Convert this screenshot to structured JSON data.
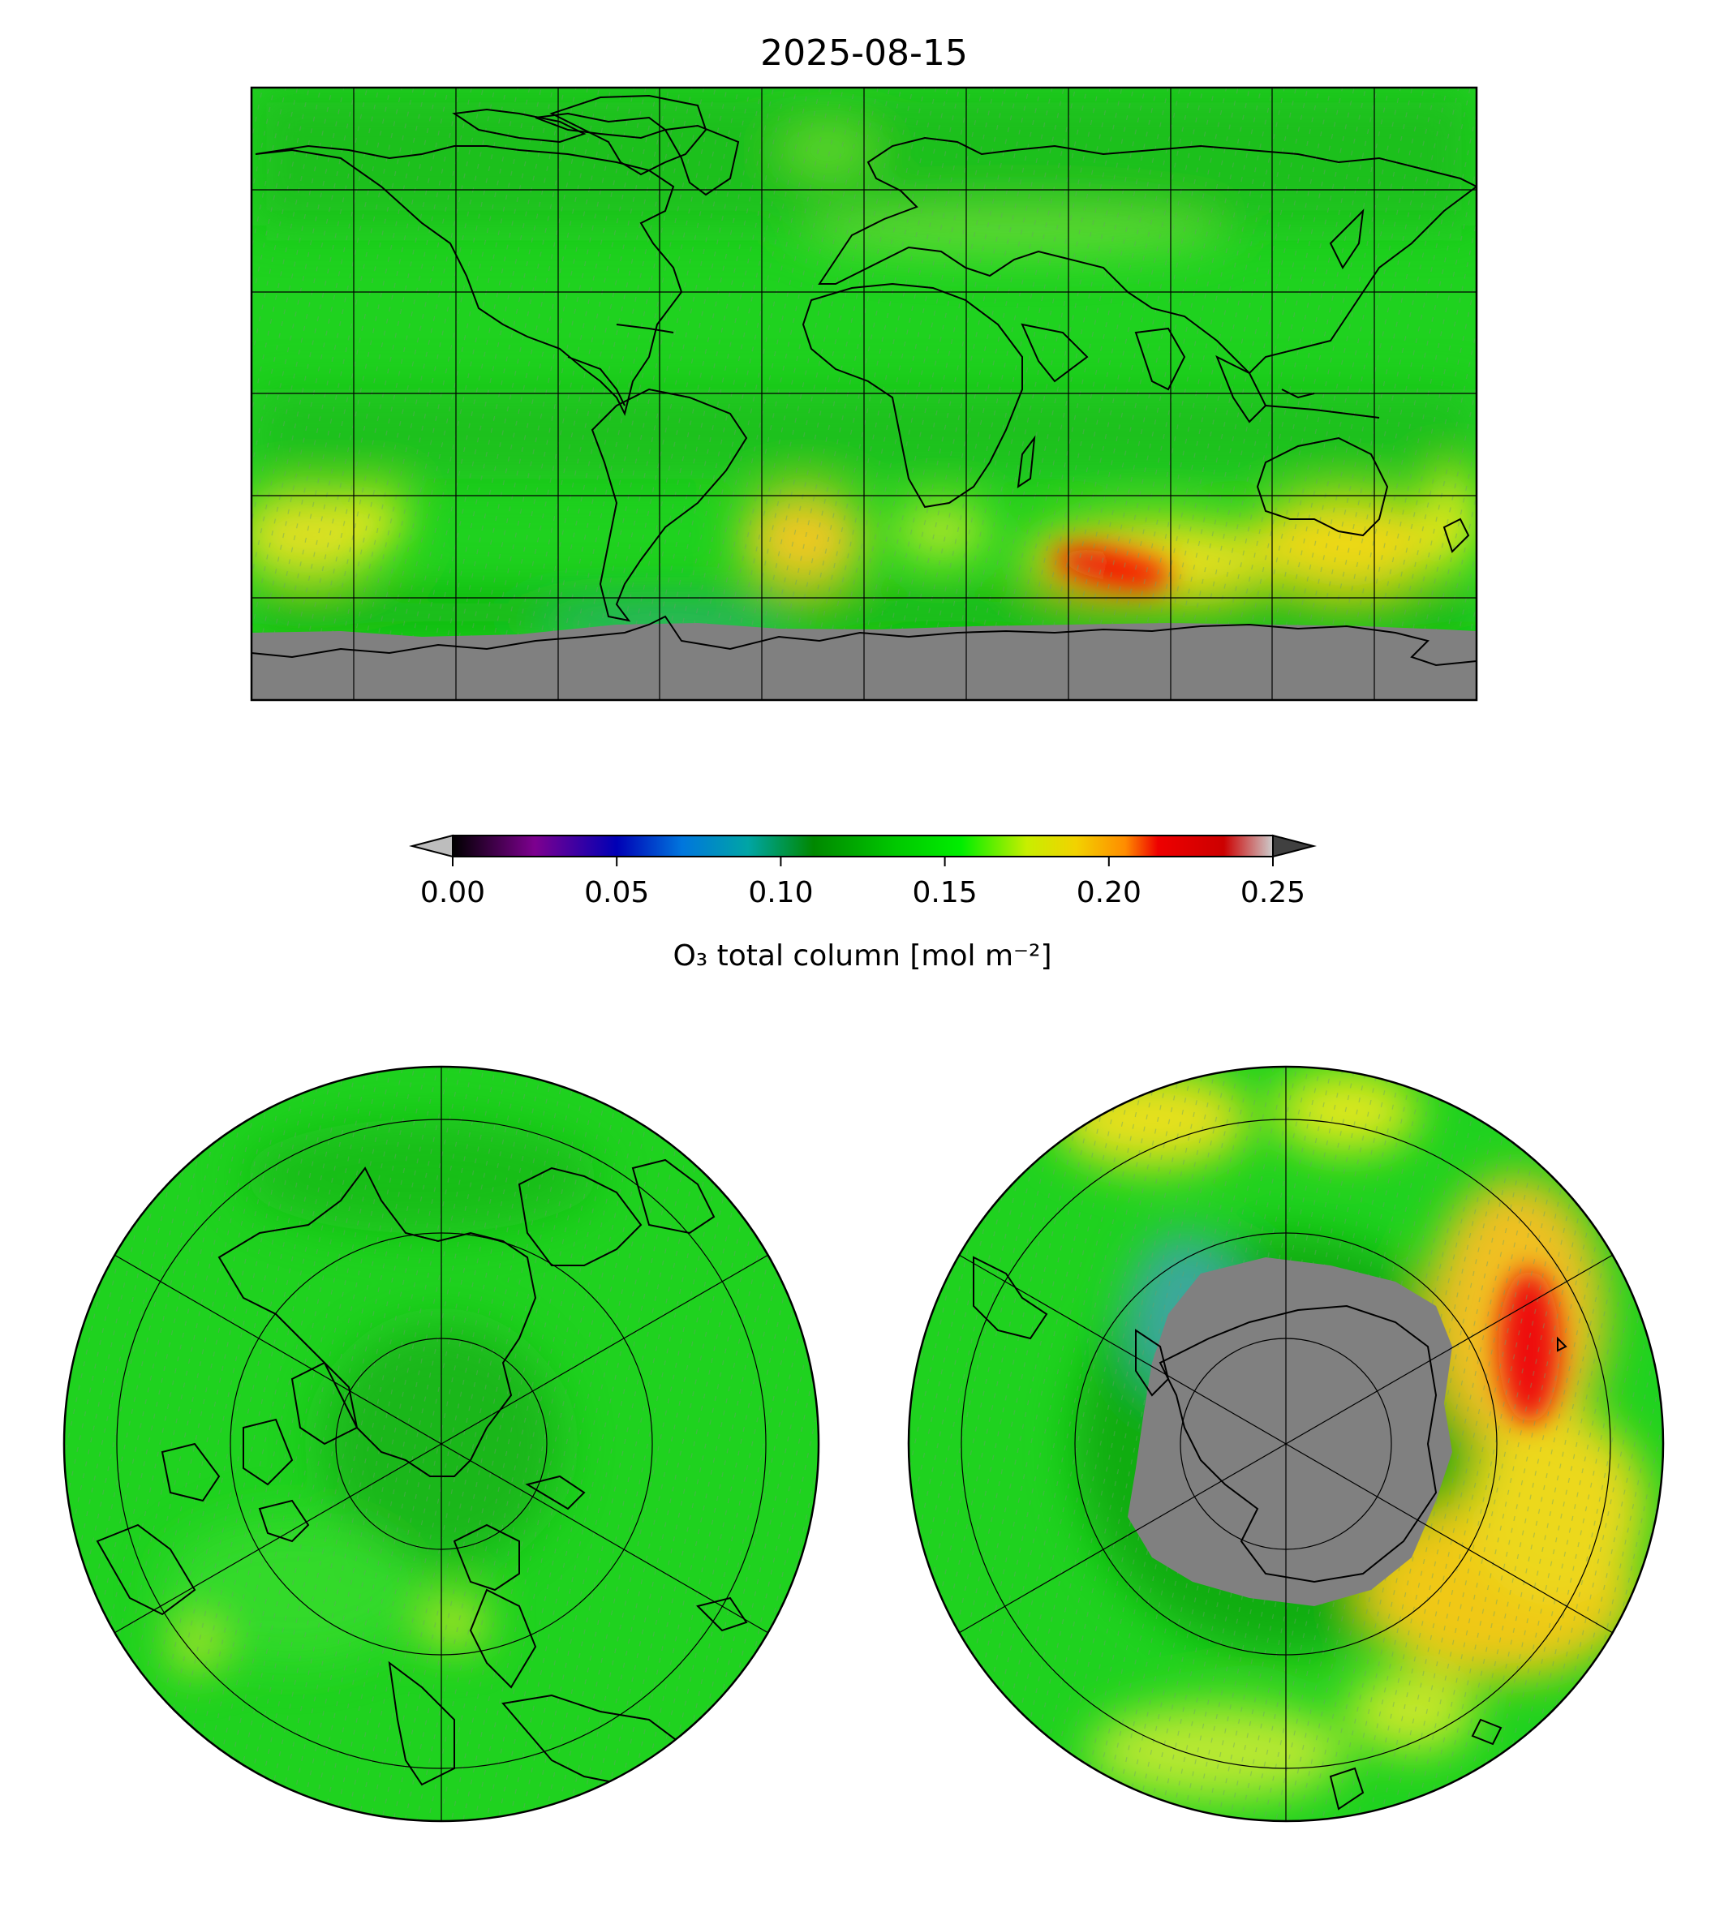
{
  "figure": {
    "title": "2025-08-15"
  },
  "colorbar": {
    "label": "O₃ total column [mol m⁻²]",
    "ticks": [
      "0.00",
      "0.05",
      "0.10",
      "0.15",
      "0.20",
      "0.25"
    ],
    "tick_values": [
      0.0,
      0.05,
      0.1,
      0.15,
      0.2,
      0.25
    ],
    "range": [
      0.0,
      0.25
    ],
    "under_color": "#bdbdbd",
    "over_color": "#404040",
    "stops": [
      {
        "v": 0.0,
        "c": "#000000"
      },
      {
        "v": 0.025,
        "c": "#7d008f"
      },
      {
        "v": 0.05,
        "c": "#0000b5"
      },
      {
        "v": 0.07,
        "c": "#0076dd"
      },
      {
        "v": 0.09,
        "c": "#00a5a5"
      },
      {
        "v": 0.11,
        "c": "#008800"
      },
      {
        "v": 0.135,
        "c": "#00c800"
      },
      {
        "v": 0.155,
        "c": "#00ee00"
      },
      {
        "v": 0.175,
        "c": "#c8ee00"
      },
      {
        "v": 0.19,
        "c": "#f2d200"
      },
      {
        "v": 0.205,
        "c": "#ff8c00"
      },
      {
        "v": 0.215,
        "c": "#ee0000"
      },
      {
        "v": 0.235,
        "c": "#cc0000"
      },
      {
        "v": 0.25,
        "c": "#cccccc"
      }
    ]
  },
  "colors": {
    "background_field": "#1fd21f",
    "dark_field": "#17b017",
    "no_data": "#808080",
    "high_ozone_yellow": "#e8e21a",
    "high_ozone_orange": "#f0a010",
    "high_ozone_red": "#ee1010",
    "low_ozone_teal": "#3aa89a"
  },
  "panels": {
    "global_map": {
      "projection": "plate-carree"
    },
    "north_pole": {
      "projection": "north-polar-stereographic"
    },
    "south_pole": {
      "projection": "south-polar-stereographic"
    }
  }
}
